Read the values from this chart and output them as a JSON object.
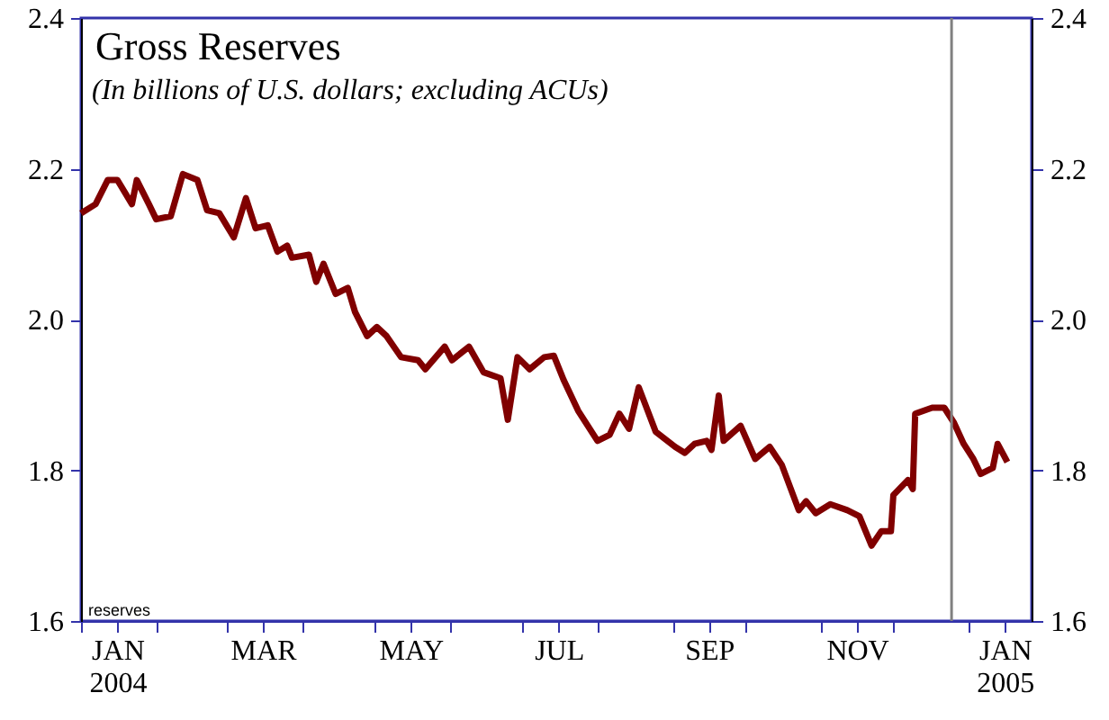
{
  "chart_data": {
    "type": "line",
    "title": "Gross Reserves",
    "subtitle": "(In billions of U.S. dollars; excluding ACUs)",
    "annotations": [
      "reserves"
    ],
    "x": [
      "2004-01-01",
      "2004-01-07",
      "2004-01-12",
      "2004-01-16",
      "2004-01-22",
      "2004-01-24",
      "2004-01-29",
      "2004-02-01",
      "2004-02-07",
      "2004-02-12",
      "2004-02-18",
      "2004-02-22",
      "2004-02-27",
      "2004-03-04",
      "2004-03-09",
      "2004-03-13",
      "2004-03-18",
      "2004-03-22",
      "2004-03-26",
      "2004-03-28",
      "2004-04-04",
      "2004-04-07",
      "2004-04-10",
      "2004-04-15",
      "2004-04-20",
      "2004-04-23",
      "2004-04-28",
      "2004-05-02",
      "2004-05-06",
      "2004-05-12",
      "2004-05-19",
      "2004-05-22",
      "2004-05-30",
      "2004-06-02",
      "2004-06-09",
      "2004-06-15",
      "2004-06-22",
      "2004-06-25",
      "2004-06-29",
      "2004-07-04",
      "2004-07-10",
      "2004-07-14",
      "2004-07-18",
      "2004-07-24",
      "2004-08-01",
      "2004-08-06",
      "2004-08-10",
      "2004-08-14",
      "2004-08-18",
      "2004-08-25",
      "2004-09-02",
      "2004-09-06",
      "2004-09-10",
      "2004-09-15",
      "2004-09-17",
      "2004-09-20",
      "2004-09-22",
      "2004-09-29",
      "2004-10-05",
      "2004-10-11",
      "2004-10-16",
      "2004-10-23",
      "2004-10-26",
      "2004-10-30",
      "2004-11-05",
      "2004-11-12",
      "2004-11-17",
      "2004-11-22",
      "2004-11-26",
      "2004-11-30",
      "2004-12-01",
      "2004-12-07",
      "2004-12-09",
      "2004-12-10",
      "2004-12-17",
      "2004-12-22",
      "2004-12-26",
      "2004-12-30",
      "2005-01-03",
      "2005-01-06",
      "2005-01-11",
      "2005-01-13",
      "2005-01-17"
    ],
    "series": [
      {
        "color": "#800000",
        "values": [
          2.141,
          2.153,
          2.185,
          2.185,
          2.153,
          2.185,
          2.153,
          2.133,
          2.137,
          2.193,
          2.185,
          2.145,
          2.141,
          2.109,
          2.161,
          2.121,
          2.125,
          2.09,
          2.098,
          2.082,
          2.086,
          2.05,
          2.074,
          2.034,
          2.042,
          2.01,
          1.978,
          1.99,
          1.978,
          1.95,
          1.946,
          1.934,
          1.964,
          1.946,
          1.964,
          1.93,
          1.922,
          1.867,
          1.95,
          1.934,
          1.95,
          1.952,
          1.92,
          1.879,
          1.839,
          1.847,
          1.875,
          1.855,
          1.91,
          1.851,
          1.831,
          1.823,
          1.835,
          1.839,
          1.827,
          1.899,
          1.839,
          1.859,
          1.815,
          1.831,
          1.807,
          1.747,
          1.759,
          1.743,
          1.755,
          1.747,
          1.739,
          1.7,
          1.719,
          1.719,
          1.767,
          1.787,
          1.775,
          1.875,
          1.883,
          1.883,
          1.863,
          1.835,
          1.815,
          1.795,
          1.803,
          1.835,
          1.811
        ]
      }
    ],
    "xlim": [
      "2004-01-01",
      "2005-01-27"
    ],
    "xticks": [
      {
        "value": "2004-01-01",
        "label": null
      },
      {
        "value": "2004-01-16",
        "label": "JAN\n2004"
      },
      {
        "value": "2004-02-01",
        "label": null
      },
      {
        "value": "2004-03-01",
        "label": null
      },
      {
        "value": "2004-03-16",
        "label": "MAR"
      },
      {
        "value": "2004-04-01",
        "label": null
      },
      {
        "value": "2004-05-01",
        "label": null
      },
      {
        "value": "2004-05-16",
        "label": "MAY"
      },
      {
        "value": "2004-06-01",
        "label": null
      },
      {
        "value": "2004-07-01",
        "label": null
      },
      {
        "value": "2004-07-16",
        "label": "JUL"
      },
      {
        "value": "2004-08-01",
        "label": null
      },
      {
        "value": "2004-09-01",
        "label": null
      },
      {
        "value": "2004-09-16",
        "label": "SEP"
      },
      {
        "value": "2004-10-01",
        "label": null
      },
      {
        "value": "2004-11-01",
        "label": null
      },
      {
        "value": "2004-11-16",
        "label": "NOV"
      },
      {
        "value": "2004-12-01",
        "label": null
      },
      {
        "value": "2005-01-01",
        "label": null
      },
      {
        "value": "2005-01-16",
        "label": "JAN\n2005"
      }
    ],
    "ylim": [
      1.6,
      2.4
    ],
    "yticks": [
      {
        "value": 1.6,
        "label": "1.6"
      },
      {
        "value": 1.8,
        "label": "1.8"
      },
      {
        "value": 2,
        "label": "2.0"
      },
      {
        "value": 2.2,
        "label": "2.2"
      },
      {
        "value": 2.4,
        "label": "2.4"
      }
    ],
    "y2lim": [
      1.6,
      2.4
    ],
    "y2ticks": [
      {
        "value": 1.6,
        "label": "1.6"
      },
      {
        "value": 1.8,
        "label": "1.8"
      },
      {
        "value": 2,
        "label": "2.0"
      },
      {
        "value": 2.2,
        "label": "2.2"
      },
      {
        "value": 2.4,
        "label": "2.4"
      }
    ],
    "ref_lines": [
      {
        "axis": "x",
        "value": "2004-12-25",
        "color": "#808080"
      }
    ],
    "line_style": "solid"
  }
}
